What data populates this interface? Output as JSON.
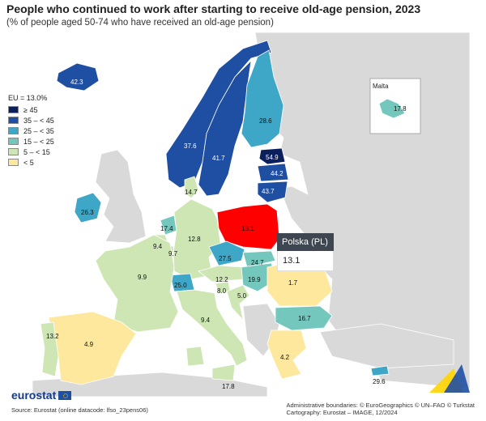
{
  "header": {
    "title": "People who continued to work after starting to receive old-age pension, 2023",
    "subtitle": "(% of people aged 50-74 who have received an old-age pension)"
  },
  "legend": {
    "heading": "EU = 13.0%",
    "classes": [
      {
        "label": "≥ 45",
        "color": "#0b1f5c"
      },
      {
        "label": "35 – < 45",
        "color": "#1f4fa3"
      },
      {
        "label": "25 – < 35",
        "color": "#3ea6c6"
      },
      {
        "label": "15 – < 25",
        "color": "#73c7bc"
      },
      {
        "label": "5 – < 15",
        "color": "#cde6b3"
      },
      {
        "label": "< 5",
        "color": "#fde89d"
      }
    ]
  },
  "map": {
    "inset_title": "Malta",
    "highlight_color": "#ff0000",
    "no_data_color": "#d9d9d9",
    "values": {
      "IS": "42.3",
      "NO": "37.6",
      "SE": "41.7",
      "FI": "28.6",
      "EE": "54.9",
      "LV": "44.2",
      "LT": "43.7",
      "IE": "26.3",
      "DK": "14.7",
      "NL": "17.4",
      "BE": "9.4",
      "LU": "9.7",
      "DE": "12.8",
      "PL": "13.1",
      "CZ": "27.5",
      "SK": "24.7",
      "AT": "12.2",
      "CH": "25.0",
      "SI": "8.0",
      "HR": "5.0",
      "HU": "19.9",
      "RO": "1.7",
      "BG": "16.7",
      "FR": "9.9",
      "IT": "9.4",
      "ES": "4.9",
      "PT": "13.2",
      "EL": "4.2",
      "CY": "29.6",
      "MT": "17.8",
      "MT2": "17.8"
    }
  },
  "tooltip": {
    "country": "Polska (PL)",
    "value": "13.1"
  },
  "footer": {
    "logo": "eurostat",
    "source": "Source: Eurostat (online datacode: lfso_23pens06)",
    "boundaries": "Administrative boundaries: © EuroGeographics © UN–FAO © Turkstat",
    "cartography": "Cartography: Eurostat – IMAGE, 12/2024"
  }
}
